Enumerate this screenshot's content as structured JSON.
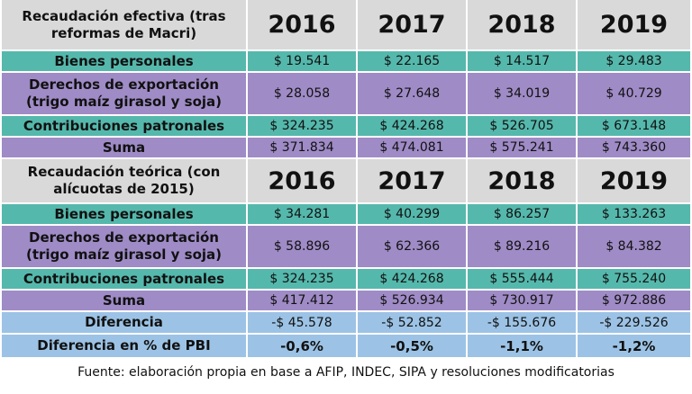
{
  "sections": [
    {
      "header": {
        "label": "Recaudación efectiva (tras reformas de Macri)",
        "years": [
          "2016",
          "2017",
          "2018",
          "2019"
        ]
      },
      "rows": [
        {
          "label": "Bienes personales",
          "values": [
            "$ 19.541",
            "$ 22.165",
            "$ 14.517",
            "$ 29.483"
          ]
        },
        {
          "label": "Derechos de exportación (trigo maíz girasol y soja)",
          "values": [
            "$ 28.058",
            "$ 27.648",
            "$ 34.019",
            "$ 40.729"
          ]
        },
        {
          "label": "Contribuciones patronales",
          "values": [
            "$ 324.235",
            "$ 424.268",
            "$ 526.705",
            "$ 673.148"
          ]
        },
        {
          "label": "Suma",
          "values": [
            "$ 371.834",
            "$ 474.081",
            "$ 575.241",
            "$ 743.360"
          ]
        }
      ]
    },
    {
      "header": {
        "label": "Recaudación teórica (con alícuotas de 2015)",
        "years": [
          "2016",
          "2017",
          "2018",
          "2019"
        ]
      },
      "rows": [
        {
          "label": "Bienes personales",
          "values": [
            "$ 34.281",
            "$ 40.299",
            "$ 86.257",
            "$ 133.263"
          ]
        },
        {
          "label": "Derechos de exportación (trigo maíz girasol y soja)",
          "values": [
            "$ 58.896",
            "$ 62.366",
            "$ 89.216",
            "$ 84.382"
          ]
        },
        {
          "label": "Contribuciones patronales",
          "values": [
            "$ 324.235",
            "$ 424.268",
            "$ 555.444",
            "$ 755.240"
          ]
        },
        {
          "label": "Suma",
          "values": [
            "$ 417.412",
            "$ 526.934",
            "$ 730.917",
            "$ 972.886"
          ]
        }
      ]
    }
  ],
  "difference_rows": [
    {
      "label": "Diferencia",
      "values": [
        "-$ 45.578",
        "-$ 52.852",
        "-$ 155.676",
        "-$ 229.526"
      ]
    },
    {
      "label": "Diferencia en % de PBI",
      "values": [
        "-0,6%",
        "-0,5%",
        "-1,1%",
        "-1,2%"
      ]
    }
  ],
  "footer": "Fuente: elaboración propia en base a AFIP, INDEC, SIPA y resoluciones modificatorias"
}
